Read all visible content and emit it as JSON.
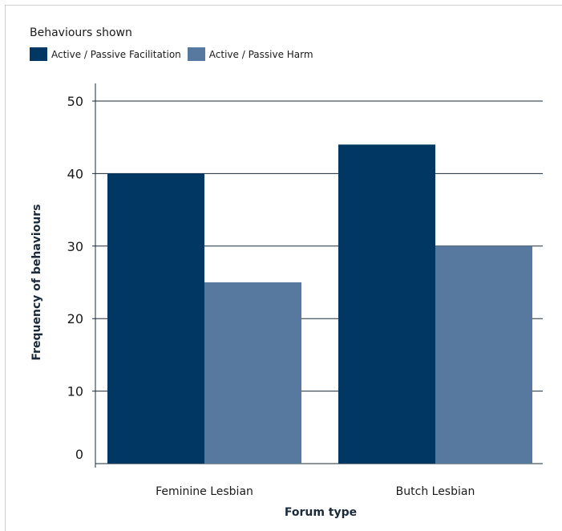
{
  "chart_data": {
    "type": "bar",
    "title": "",
    "legend_title": "Behaviours shown",
    "legend_position": "top-left",
    "categories": [
      "Feminine Lesbian",
      "Butch Lesbian"
    ],
    "series": [
      {
        "name": "Active / Passive Facilitation",
        "values": [
          40,
          44
        ],
        "color": "#003863"
      },
      {
        "name": "Active / Passive Harm",
        "values": [
          25,
          30
        ],
        "color": "#58799f"
      }
    ],
    "xlabel": "Forum type",
    "ylabel": "Frequency of behaviours",
    "ylim": [
      0,
      50
    ],
    "yticks": [
      "0",
      "10",
      "20",
      "30",
      "40",
      "50"
    ],
    "grid": true
  }
}
